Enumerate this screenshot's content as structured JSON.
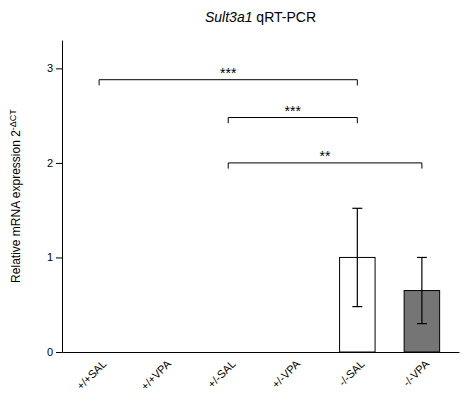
{
  "chart_data": {
    "type": "bar",
    "title": "Sult3a1 qRT-PCR",
    "y_label": "Relative mRNA expression 2-ΔCT",
    "categories": [
      "+/+SAL",
      "+/+VPA",
      "+/-SAL",
      "+/-VPA",
      "-/-SAL",
      "-/-VPA"
    ],
    "values": [
      0.0,
      0.0,
      0.0,
      0.0,
      1.0,
      0.65
    ],
    "errors_upper": [
      0.0,
      0.0,
      0.0,
      0.0,
      0.52,
      0.35
    ],
    "errors_lower": [
      0.0,
      0.0,
      0.0,
      0.0,
      0.52,
      0.35
    ],
    "colors": [
      "white",
      "white",
      "white",
      "white",
      "white",
      "#757575"
    ],
    "ylim": [
      0,
      3.3
    ],
    "yticks": [
      0,
      1,
      2,
      3
    ],
    "grid": false,
    "significance": [
      {
        "x1": "+/+SAL",
        "x2": "-/-SAL",
        "y": 2.88,
        "label": "***"
      },
      {
        "x1": "+/-SAL",
        "x2": "-/-SAL",
        "y": 2.48,
        "label": "***"
      },
      {
        "x1": "+/-SAL",
        "x2": "-/-VPA",
        "y": 2.0,
        "label": "**"
      }
    ]
  }
}
